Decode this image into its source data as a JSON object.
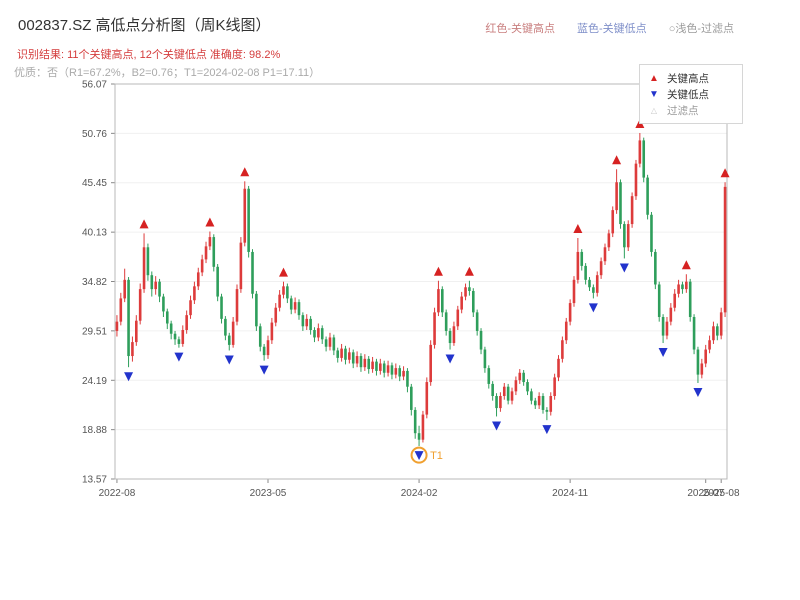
{
  "header": {
    "title": "002837.SZ 高低点分析图（周K线图）",
    "legend_inline": {
      "high": "红色-关键高点",
      "low": "蓝色-关键低点",
      "filtered": "○浅色-过滤点"
    },
    "result_line": "识别结果: 11个关键高点, 12个关键低点  准确度: 98.2%",
    "quality_line": "优质：否（R1=67.2%，B2=0.76；T1=2024-02-08 P1=17.11）"
  },
  "legend_box": {
    "items": [
      {
        "label": "关键高点",
        "glyph": "▲",
        "color": "#d62222"
      },
      {
        "label": "关键低点",
        "glyph": "▼",
        "color": "#2233cc"
      },
      {
        "label": "过滤点",
        "glyph": "△",
        "color": "#c8c8c8"
      }
    ]
  },
  "chart_data": {
    "type": "candlestick",
    "title": "002837.SZ 高低点分析图（周K线图）",
    "symbol": "002837.SZ",
    "frequency": "weekly",
    "ylim": [
      13.57,
      56.07
    ],
    "y_ticks": [
      56.07,
      50.76,
      45.45,
      40.13,
      34.82,
      29.51,
      24.19,
      18.88,
      13.57
    ],
    "x_ticks": [
      {
        "index": 0,
        "label": "2022-08"
      },
      {
        "index": 39,
        "label": "2023-05"
      },
      {
        "index": 78,
        "label": "2024-02"
      },
      {
        "index": 117,
        "label": "2024-11"
      },
      {
        "index": 152,
        "label": "2025-07"
      },
      {
        "index": 156,
        "label": "2025-08"
      }
    ],
    "grid": true,
    "legend_position": "top-right",
    "up_color": "#dd3b3b",
    "down_color": "#2e9e5b",
    "key_high_color": "#d62222",
    "key_low_color": "#2233cc",
    "t1_color": "#f0a030",
    "stats": {
      "key_high_count": 11,
      "key_low_count": 12,
      "accuracy": "98.2%",
      "premium": "否",
      "R1": "67.2%",
      "B2": "0.76",
      "T1_date": "2024-02-08",
      "P1": 17.11
    },
    "candles": [
      [
        29.5,
        31.2,
        28.9,
        30.5
      ],
      [
        30.5,
        33.6,
        30.1,
        33.0
      ],
      [
        33.0,
        36.2,
        32.6,
        35.0
      ],
      [
        35.0,
        35.3,
        25.6,
        26.8
      ],
      [
        26.8,
        28.9,
        26.2,
        28.3
      ],
      [
        28.3,
        31.2,
        27.9,
        30.6
      ],
      [
        30.6,
        34.6,
        30.2,
        34.0
      ],
      [
        34.0,
        40.0,
        33.6,
        38.5
      ],
      [
        38.5,
        38.9,
        34.9,
        35.5
      ],
      [
        35.5,
        35.9,
        33.2,
        34.0
      ],
      [
        34.0,
        35.4,
        33.4,
        34.8
      ],
      [
        34.8,
        35.1,
        32.6,
        33.2
      ],
      [
        33.2,
        33.5,
        31.0,
        31.6
      ],
      [
        31.6,
        31.9,
        29.7,
        30.3
      ],
      [
        30.3,
        30.6,
        28.6,
        29.2
      ],
      [
        29.2,
        29.5,
        28.0,
        28.6
      ],
      [
        28.6,
        28.9,
        27.7,
        28.1
      ],
      [
        28.1,
        30.1,
        27.8,
        29.6
      ],
      [
        29.6,
        31.7,
        29.2,
        31.2
      ],
      [
        31.2,
        33.3,
        30.8,
        32.8
      ],
      [
        32.8,
        34.8,
        32.4,
        34.3
      ],
      [
        34.3,
        36.3,
        33.9,
        35.8
      ],
      [
        35.8,
        37.7,
        35.4,
        37.2
      ],
      [
        37.2,
        39.1,
        36.8,
        38.6
      ],
      [
        38.6,
        40.2,
        38.2,
        39.6
      ],
      [
        39.6,
        39.9,
        35.9,
        36.4
      ],
      [
        36.4,
        36.7,
        32.7,
        33.2
      ],
      [
        33.2,
        33.5,
        30.3,
        30.8
      ],
      [
        30.8,
        31.1,
        28.5,
        29.0
      ],
      [
        29.0,
        29.3,
        27.4,
        28.0
      ],
      [
        28.0,
        31.0,
        27.7,
        30.5
      ],
      [
        30.5,
        34.5,
        30.1,
        34.0
      ],
      [
        34.0,
        39.6,
        33.6,
        39.0
      ],
      [
        39.0,
        45.6,
        38.6,
        44.8
      ],
      [
        44.8,
        45.1,
        37.4,
        38.0
      ],
      [
        38.0,
        38.3,
        33.0,
        33.5
      ],
      [
        33.5,
        33.8,
        29.5,
        30.0
      ],
      [
        30.0,
        30.3,
        27.3,
        27.8
      ],
      [
        27.8,
        28.1,
        26.3,
        26.9
      ],
      [
        26.9,
        29.0,
        26.5,
        28.5
      ],
      [
        28.5,
        30.9,
        28.1,
        30.4
      ],
      [
        30.4,
        32.5,
        30.0,
        32.0
      ],
      [
        32.0,
        33.9,
        31.6,
        33.4
      ],
      [
        33.4,
        34.8,
        33.0,
        34.3
      ],
      [
        34.3,
        34.6,
        32.5,
        33.0
      ],
      [
        33.0,
        33.3,
        31.3,
        31.8
      ],
      [
        31.8,
        33.1,
        31.4,
        32.6
      ],
      [
        32.6,
        32.9,
        30.7,
        31.2
      ],
      [
        31.2,
        31.5,
        29.5,
        30.0
      ],
      [
        30.0,
        31.3,
        29.6,
        30.8
      ],
      [
        30.8,
        31.1,
        29.1,
        29.6
      ],
      [
        29.6,
        29.9,
        28.3,
        28.8
      ],
      [
        28.8,
        30.3,
        28.4,
        29.8
      ],
      [
        29.8,
        30.1,
        28.1,
        28.6
      ],
      [
        28.6,
        28.9,
        27.3,
        27.8
      ],
      [
        27.8,
        29.3,
        27.4,
        28.8
      ],
      [
        28.8,
        29.1,
        26.9,
        27.4
      ],
      [
        27.4,
        27.7,
        26.1,
        26.6
      ],
      [
        26.6,
        28.1,
        26.2,
        27.6
      ],
      [
        27.6,
        27.9,
        25.9,
        26.4
      ],
      [
        26.4,
        27.7,
        26.0,
        27.2
      ],
      [
        27.2,
        27.5,
        25.5,
        26.0
      ],
      [
        26.0,
        27.3,
        25.6,
        26.8
      ],
      [
        26.8,
        27.1,
        25.1,
        25.6
      ],
      [
        25.6,
        27.0,
        25.2,
        26.5
      ],
      [
        26.5,
        26.8,
        24.9,
        25.4
      ],
      [
        25.4,
        26.7,
        25.0,
        26.2
      ],
      [
        26.2,
        26.5,
        24.7,
        25.2
      ],
      [
        25.2,
        26.5,
        24.8,
        26.0
      ],
      [
        26.0,
        26.3,
        24.5,
        25.0
      ],
      [
        25.0,
        26.3,
        24.6,
        25.8
      ],
      [
        25.8,
        26.1,
        24.3,
        24.8
      ],
      [
        24.8,
        26.0,
        24.4,
        25.5
      ],
      [
        25.5,
        25.8,
        24.1,
        24.6
      ],
      [
        24.6,
        25.7,
        24.2,
        25.2
      ],
      [
        25.2,
        25.5,
        22.9,
        23.5
      ],
      [
        23.5,
        23.8,
        20.4,
        21.0
      ],
      [
        21.0,
        21.3,
        17.9,
        18.5
      ],
      [
        18.5,
        19.3,
        17.11,
        17.8
      ],
      [
        17.8,
        20.9,
        17.5,
        20.5
      ],
      [
        20.5,
        24.5,
        20.1,
        24.0
      ],
      [
        24.0,
        28.5,
        23.6,
        28.0
      ],
      [
        28.0,
        32.0,
        27.6,
        31.5
      ],
      [
        31.5,
        34.9,
        31.1,
        34.0
      ],
      [
        34.0,
        34.3,
        31.0,
        31.5
      ],
      [
        31.5,
        31.8,
        29.0,
        29.5
      ],
      [
        29.5,
        29.8,
        27.5,
        28.2
      ],
      [
        28.2,
        30.5,
        27.9,
        30.0
      ],
      [
        30.0,
        32.2,
        29.6,
        31.8
      ],
      [
        31.8,
        33.7,
        31.4,
        33.2
      ],
      [
        33.2,
        34.6,
        32.8,
        34.2
      ],
      [
        34.2,
        34.9,
        33.3,
        33.8
      ],
      [
        33.8,
        34.1,
        31.0,
        31.5
      ],
      [
        31.5,
        31.8,
        29.0,
        29.5
      ],
      [
        29.5,
        29.8,
        27.0,
        27.5
      ],
      [
        27.5,
        27.8,
        25.0,
        25.5
      ],
      [
        25.5,
        25.8,
        23.3,
        23.8
      ],
      [
        23.8,
        24.1,
        22.0,
        22.5
      ],
      [
        22.5,
        22.8,
        20.3,
        21.2
      ],
      [
        21.2,
        22.9,
        20.8,
        22.5
      ],
      [
        22.5,
        23.9,
        22.1,
        23.5
      ],
      [
        23.5,
        23.8,
        21.6,
        22.0
      ],
      [
        22.0,
        23.4,
        21.6,
        23.0
      ],
      [
        23.0,
        24.6,
        22.6,
        24.2
      ],
      [
        24.2,
        25.4,
        23.8,
        25.0
      ],
      [
        25.0,
        25.3,
        23.6,
        24.0
      ],
      [
        24.0,
        24.3,
        22.6,
        23.0
      ],
      [
        23.0,
        23.3,
        21.6,
        22.0
      ],
      [
        22.0,
        22.3,
        21.1,
        21.5
      ],
      [
        21.5,
        22.9,
        21.1,
        22.5
      ],
      [
        22.5,
        22.8,
        20.6,
        21.0
      ],
      [
        21.0,
        21.3,
        19.9,
        20.8
      ],
      [
        20.8,
        22.9,
        20.4,
        22.5
      ],
      [
        22.5,
        24.9,
        22.1,
        24.5
      ],
      [
        24.5,
        26.9,
        24.1,
        26.5
      ],
      [
        26.5,
        28.9,
        26.1,
        28.5
      ],
      [
        28.5,
        30.9,
        28.1,
        30.5
      ],
      [
        30.5,
        32.9,
        30.1,
        32.5
      ],
      [
        32.5,
        35.4,
        32.1,
        35.0
      ],
      [
        35.0,
        39.5,
        34.6,
        38.0
      ],
      [
        38.0,
        38.3,
        36.0,
        36.5
      ],
      [
        36.5,
        36.8,
        34.5,
        35.0
      ],
      [
        35.0,
        35.3,
        33.8,
        34.2
      ],
      [
        34.2,
        34.5,
        33.0,
        33.6
      ],
      [
        33.6,
        35.9,
        33.2,
        35.5
      ],
      [
        35.5,
        37.4,
        35.1,
        37.0
      ],
      [
        37.0,
        38.9,
        36.6,
        38.5
      ],
      [
        38.5,
        40.4,
        38.1,
        40.0
      ],
      [
        40.0,
        42.9,
        39.6,
        42.5
      ],
      [
        42.5,
        46.9,
        42.1,
        45.5
      ],
      [
        45.5,
        45.8,
        40.5,
        41.0
      ],
      [
        41.0,
        41.3,
        37.3,
        38.5
      ],
      [
        38.5,
        41.4,
        38.1,
        41.0
      ],
      [
        41.0,
        44.4,
        40.6,
        44.0
      ],
      [
        44.0,
        47.9,
        43.6,
        47.5
      ],
      [
        47.5,
        50.8,
        47.1,
        50.0
      ],
      [
        50.0,
        50.3,
        45.5,
        46.0
      ],
      [
        46.0,
        46.3,
        41.5,
        42.0
      ],
      [
        42.0,
        42.3,
        37.5,
        38.0
      ],
      [
        38.0,
        38.3,
        34.0,
        34.5
      ],
      [
        34.5,
        34.8,
        30.5,
        31.0
      ],
      [
        31.0,
        31.3,
        28.2,
        29.0
      ],
      [
        29.0,
        31.0,
        28.6,
        30.5
      ],
      [
        30.5,
        32.5,
        30.1,
        32.0
      ],
      [
        32.0,
        34.0,
        31.6,
        33.5
      ],
      [
        33.5,
        35.0,
        33.1,
        34.5
      ],
      [
        34.5,
        34.8,
        33.5,
        34.0
      ],
      [
        34.0,
        35.6,
        33.6,
        34.8
      ],
      [
        34.8,
        35.1,
        30.5,
        31.0
      ],
      [
        31.0,
        31.3,
        27.0,
        27.5
      ],
      [
        27.5,
        27.8,
        23.9,
        24.8
      ],
      [
        24.8,
        26.5,
        24.4,
        26.0
      ],
      [
        26.0,
        28.0,
        25.6,
        27.5
      ],
      [
        27.5,
        29.0,
        27.1,
        28.5
      ],
      [
        28.5,
        30.5,
        28.1,
        30.0
      ],
      [
        30.0,
        30.3,
        28.5,
        29.0
      ],
      [
        29.0,
        32.0,
        28.6,
        31.5
      ],
      [
        31.5,
        45.5,
        31.0,
        45.0
      ]
    ],
    "key_highs": [
      {
        "i": 7,
        "price": 40.0
      },
      {
        "i": 24,
        "price": 40.2
      },
      {
        "i": 33,
        "price": 45.6
      },
      {
        "i": 43,
        "price": 34.8
      },
      {
        "i": 83,
        "price": 34.9
      },
      {
        "i": 91,
        "price": 34.9
      },
      {
        "i": 119,
        "price": 39.5
      },
      {
        "i": 129,
        "price": 46.9
      },
      {
        "i": 135,
        "price": 50.8
      },
      {
        "i": 147,
        "price": 35.6
      },
      {
        "i": 157,
        "price": 45.5
      }
    ],
    "key_lows": [
      {
        "i": 3,
        "price": 25.6
      },
      {
        "i": 16,
        "price": 27.7
      },
      {
        "i": 29,
        "price": 27.4
      },
      {
        "i": 38,
        "price": 26.3
      },
      {
        "i": 78,
        "price": 17.11
      },
      {
        "i": 86,
        "price": 27.5
      },
      {
        "i": 98,
        "price": 20.3
      },
      {
        "i": 111,
        "price": 19.9
      },
      {
        "i": 123,
        "price": 33.0
      },
      {
        "i": 131,
        "price": 37.3
      },
      {
        "i": 141,
        "price": 28.2
      },
      {
        "i": 150,
        "price": 23.9
      }
    ],
    "t1": {
      "i": 78,
      "price": 17.11,
      "label": "T1"
    }
  }
}
